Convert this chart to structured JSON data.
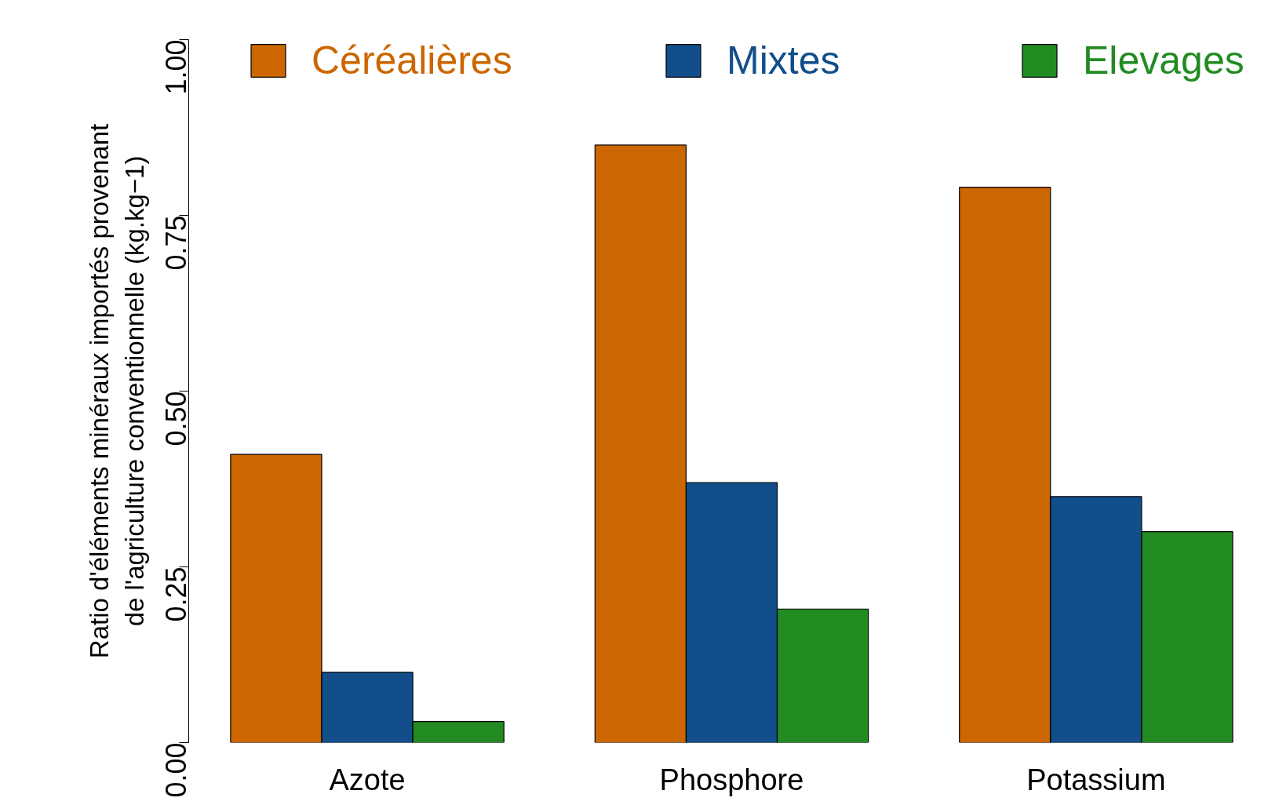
{
  "chart_data": {
    "type": "bar",
    "ylabel": "Ratio d'éléments minéraux importés provenant\nde l'agriculture conventionnelle (kg.kg−1)",
    "categories": [
      "Azote",
      "Phosphore",
      "Potassium"
    ],
    "series": [
      {
        "name": "Céréalières",
        "color": "#cc6600",
        "values": [
          0.41,
          0.85,
          0.79
        ]
      },
      {
        "name": "Mixtes",
        "color": "#114e8a",
        "values": [
          0.1,
          0.37,
          0.35
        ]
      },
      {
        "name": "Elevages",
        "color": "#228b22",
        "values": [
          0.03,
          0.19,
          0.3
        ]
      }
    ],
    "ylim": [
      0,
      1
    ],
    "yticks": [
      {
        "value": 0,
        "label": "0.00"
      },
      {
        "value": 0.25,
        "label": "0.25"
      },
      {
        "value": 0.5,
        "label": "0.50"
      },
      {
        "value": 0.75,
        "label": "0.75"
      },
      {
        "value": 1,
        "label": "1.00"
      }
    ],
    "grid": false,
    "legend": "top"
  }
}
